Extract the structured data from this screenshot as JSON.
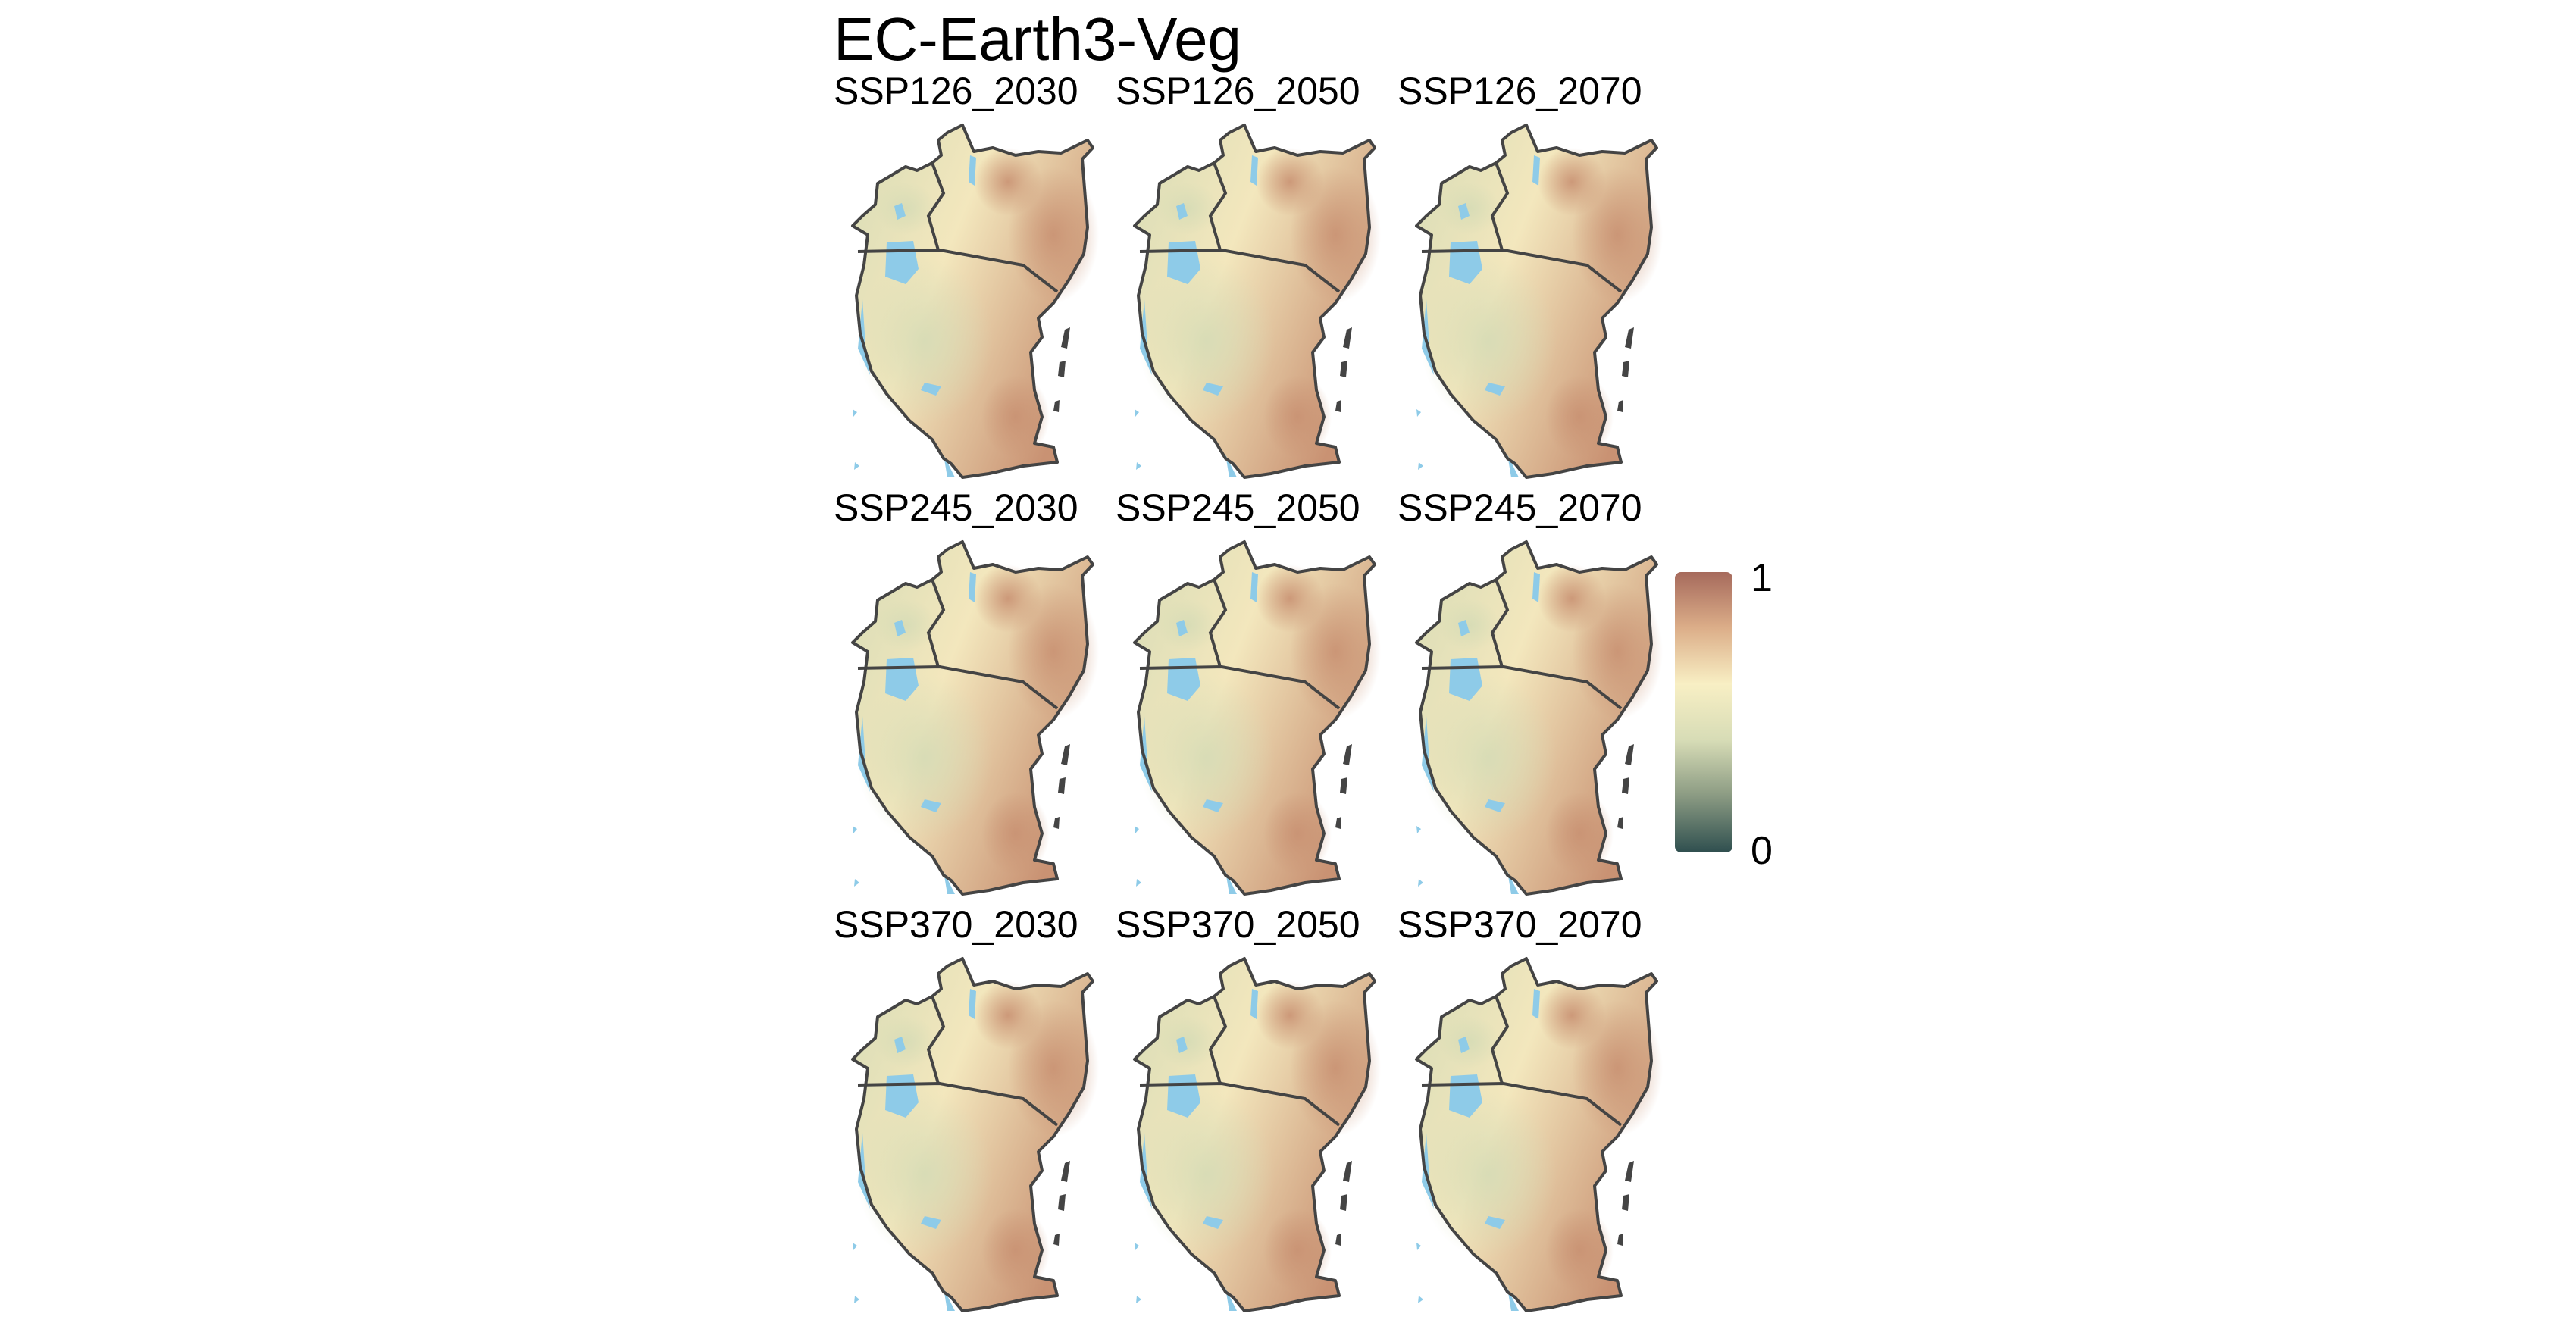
{
  "figure": {
    "title": "EC-Earth3-Veg"
  },
  "panels": [
    {
      "label": "SSP126_2030"
    },
    {
      "label": "SSP126_2050"
    },
    {
      "label": "SSP126_2070"
    },
    {
      "label": "SSP245_2030"
    },
    {
      "label": "SSP245_2050"
    },
    {
      "label": "SSP245_2070"
    },
    {
      "label": "SSP370_2030"
    },
    {
      "label": "SSP370_2050"
    },
    {
      "label": "SSP370_2070"
    }
  ],
  "legend": {
    "max_label": "1",
    "min_label": "0",
    "range": [
      0,
      1
    ],
    "colors": [
      "#2f4f4f",
      "#8a9a82",
      "#d7dcb6",
      "#f8efc4",
      "#dcae89",
      "#a66a5c"
    ]
  },
  "map_colors": {
    "water": "#8ecbe8",
    "border": "#444444",
    "low_suitability": "#d7dcb6",
    "mid_suitability": "#f3e7bd",
    "high_suitability": "#c99273"
  }
}
